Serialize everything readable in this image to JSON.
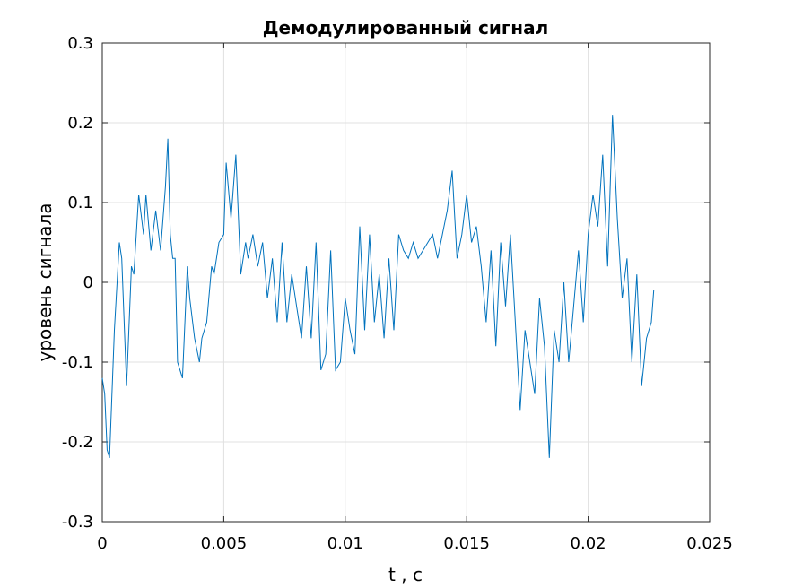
{
  "chart_data": {
    "type": "line",
    "title": "Демодулированный сигнал",
    "xlabel": "t , c",
    "ylabel": "уровень сигнала",
    "xlim": [
      0,
      0.025
    ],
    "ylim": [
      -0.3,
      0.3
    ],
    "x_ticks": [
      0,
      0.005,
      0.01,
      0.015,
      0.02,
      0.025
    ],
    "x_tick_labels": [
      "0",
      "0.005",
      "0.01",
      "0.015",
      "0.02",
      "0.025"
    ],
    "y_ticks": [
      -0.3,
      -0.2,
      -0.1,
      0,
      0.1,
      0.2,
      0.3
    ],
    "y_tick_labels": [
      "-0.3",
      "-0.2",
      "-0.1",
      "0",
      "0.1",
      "0.2",
      "0.3"
    ],
    "grid": true,
    "series": [
      {
        "color": "#0072bd",
        "x": [
          0,
          0.0001,
          0.0002,
          0.0003,
          0.0005,
          0.0007,
          0.0008,
          0.001,
          0.0012,
          0.0013,
          0.0015,
          0.0017,
          0.0018,
          0.002,
          0.0022,
          0.0024,
          0.0026,
          0.0027,
          0.0028,
          0.0029,
          0.003,
          0.0031,
          0.0033,
          0.0035,
          0.0036,
          0.0038,
          0.004,
          0.0041,
          0.0043,
          0.0045,
          0.0046,
          0.0048,
          0.005,
          0.0051,
          0.0053,
          0.0055,
          0.0057,
          0.0059,
          0.006,
          0.0062,
          0.0064,
          0.0066,
          0.0068,
          0.007,
          0.0072,
          0.0074,
          0.0076,
          0.0078,
          0.008,
          0.0082,
          0.0084,
          0.0086,
          0.0088,
          0.009,
          0.0092,
          0.0094,
          0.0096,
          0.0098,
          0.01,
          0.0102,
          0.0104,
          0.0106,
          0.0108,
          0.011,
          0.0112,
          0.0114,
          0.0116,
          0.0118,
          0.012,
          0.0122,
          0.0124,
          0.0126,
          0.0128,
          0.013,
          0.0132,
          0.0134,
          0.0136,
          0.0138,
          0.014,
          0.0142,
          0.0144,
          0.0146,
          0.0148,
          0.015,
          0.0152,
          0.0154,
          0.0156,
          0.0158,
          0.016,
          0.0162,
          0.0164,
          0.0166,
          0.0168,
          0.017,
          0.0172,
          0.0174,
          0.0176,
          0.0178,
          0.018,
          0.0182,
          0.0184,
          0.0186,
          0.0188,
          0.019,
          0.0192,
          0.0194,
          0.0196,
          0.0198,
          0.02,
          0.0202,
          0.0204,
          0.0206,
          0.0208,
          0.021,
          0.0212,
          0.0214,
          0.0216,
          0.0218,
          0.022,
          0.0222,
          0.0224,
          0.0226,
          0.0227
        ],
        "y": [
          -0.12,
          -0.14,
          -0.21,
          -0.22,
          -0.06,
          0.05,
          0.03,
          -0.13,
          0.02,
          0.01,
          0.11,
          0.06,
          0.11,
          0.04,
          0.09,
          0.04,
          0.12,
          0.18,
          0.06,
          0.03,
          0.03,
          -0.1,
          -0.12,
          0.02,
          -0.02,
          -0.07,
          -0.1,
          -0.07,
          -0.05,
          0.02,
          0.01,
          0.05,
          0.06,
          0.15,
          0.08,
          0.16,
          0.01,
          0.05,
          0.03,
          0.06,
          0.02,
          0.05,
          -0.02,
          0.03,
          -0.05,
          0.05,
          -0.05,
          0.01,
          -0.03,
          -0.07,
          0.02,
          -0.07,
          0.05,
          -0.11,
          -0.09,
          0.04,
          -0.11,
          -0.1,
          -0.02,
          -0.06,
          -0.09,
          0.07,
          -0.06,
          0.06,
          -0.05,
          0.01,
          -0.07,
          0.03,
          -0.06,
          0.06,
          0.04,
          0.03,
          0.05,
          0.03,
          0.04,
          0.05,
          0.06,
          0.03,
          0.06,
          0.09,
          0.14,
          0.03,
          0.06,
          0.11,
          0.05,
          0.07,
          0.02,
          -0.05,
          0.04,
          -0.08,
          0.05,
          -0.03,
          0.06,
          -0.05,
          -0.16,
          -0.06,
          -0.1,
          -0.14,
          -0.02,
          -0.08,
          -0.22,
          -0.06,
          -0.1,
          0,
          -0.1,
          -0.03,
          0.04,
          -0.05,
          0.06,
          0.11,
          0.07,
          0.16,
          0.02,
          0.21,
          0.08,
          -0.02,
          0.03,
          -0.1,
          0.01,
          -0.13,
          -0.07,
          -0.05,
          -0.01
        ]
      }
    ]
  }
}
